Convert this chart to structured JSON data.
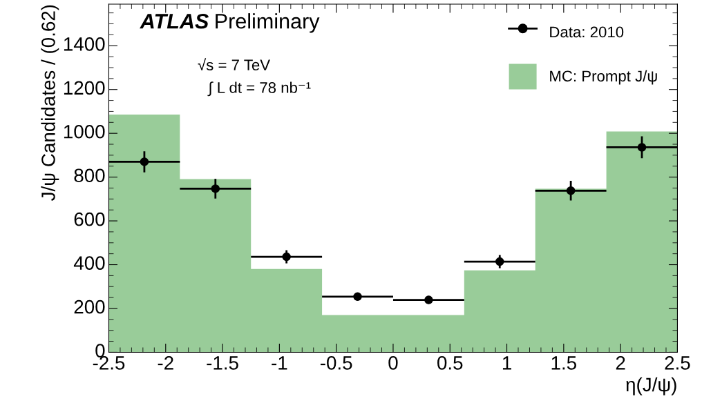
{
  "chart_data": {
    "type": "histogram",
    "xlabel": "η(J/ψ)",
    "ylabel": "J/ψ Candidates / (0.62)",
    "bins": [
      -2.5,
      -1.875,
      -1.25,
      -0.625,
      0,
      0.625,
      1.25,
      1.875,
      2.5
    ],
    "series": [
      {
        "name": "Data: 2010",
        "type": "scatter",
        "color": "#000000",
        "x": [
          -2.1875,
          -1.5625,
          -0.9375,
          -0.3125,
          0.3125,
          0.9375,
          1.5625,
          2.1875
        ],
        "values": [
          870,
          747,
          436,
          254,
          239,
          414,
          738,
          936
        ],
        "errors": [
          48,
          45,
          30,
          15,
          15,
          30,
          45,
          50
        ],
        "xerrors": [
          0.3125,
          0.3125,
          0.3125,
          0.3125,
          0.3125,
          0.3125,
          0.3125,
          0.3125
        ]
      },
      {
        "name": "MC: Prompt J/ψ",
        "type": "histogram",
        "color": "#99cc99",
        "values": [
          1086,
          791,
          380,
          170,
          170,
          374,
          747,
          1008
        ]
      }
    ],
    "xlim": [
      -2.5,
      2.5
    ],
    "ylim": [
      0,
      1590
    ],
    "xticks": [
      {
        "value": -2.5,
        "label": "-2.5"
      },
      {
        "value": -2,
        "label": "-2"
      },
      {
        "value": -1.5,
        "label": "-1.5"
      },
      {
        "value": -1,
        "label": "-1"
      },
      {
        "value": -0.5,
        "label": "-0.5"
      },
      0,
      0.5,
      1,
      1.5,
      2,
      2.5
    ],
    "yticks": [
      0,
      200,
      400,
      600,
      800,
      1000,
      1200,
      1400
    ],
    "marker": "circle",
    "legend": "top right",
    "grid": false,
    "annotations": [
      "ATLAS",
      "Preliminary",
      "√s = 7 TeV",
      "∫ L dt = 78 nb⁻¹"
    ]
  }
}
